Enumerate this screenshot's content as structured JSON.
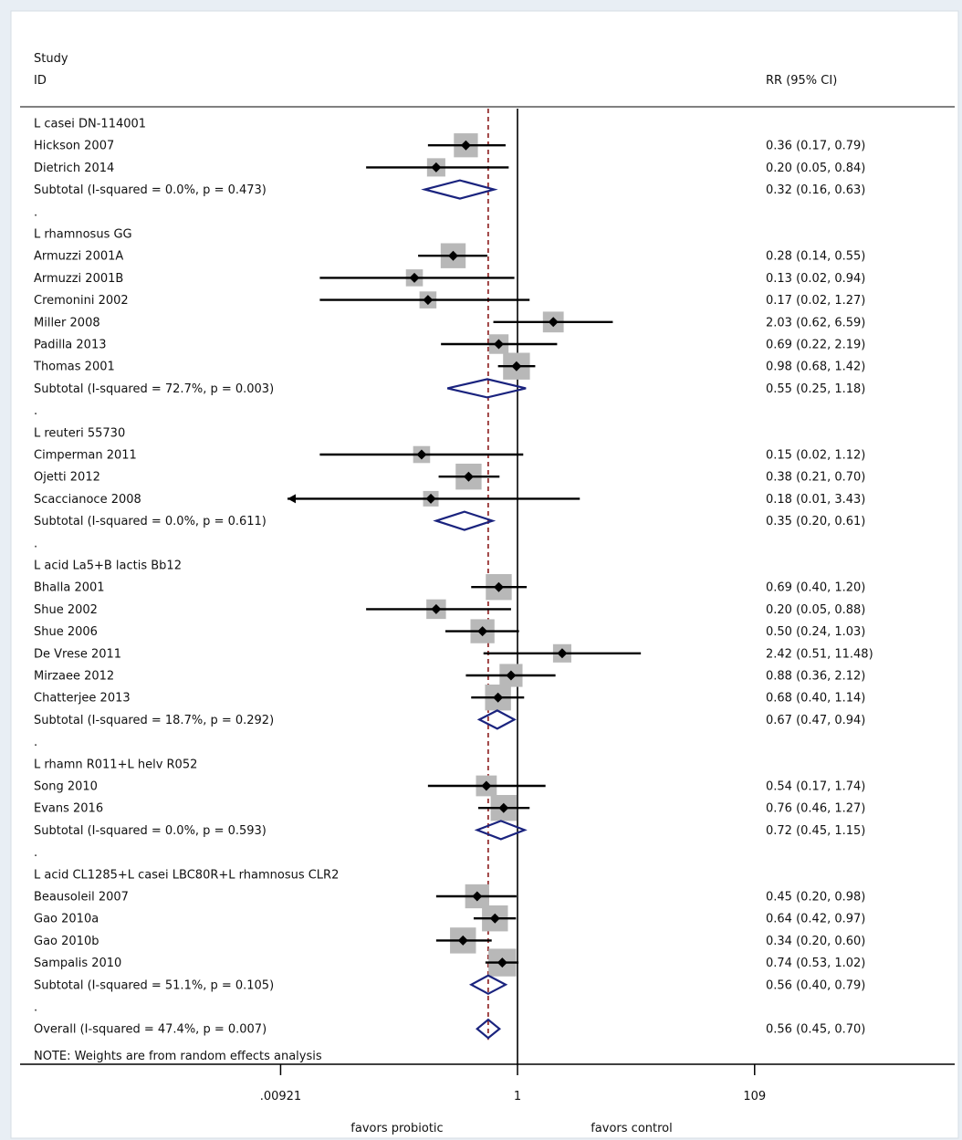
{
  "chart_data": {
    "type": "forest",
    "headers": {
      "study_line1": "Study",
      "study_line2": "ID",
      "effect": "RR (95% CI)"
    },
    "x_axis": {
      "scale": "log",
      "ticks": [
        0.00921,
        1,
        109
      ],
      "tick_labels": [
        ".00921",
        "1",
        "109"
      ],
      "null_line": 1,
      "overall_line": 0.56
    },
    "direction_labels": {
      "left": "favors probiotic",
      "right": "favors control"
    },
    "rows": [
      {
        "type": "group",
        "label": "L casei DN-114001"
      },
      {
        "type": "study",
        "label": "Hickson 2007",
        "rr": 0.36,
        "lo": 0.17,
        "hi": 0.79,
        "text": "0.36 (0.17, 0.79)",
        "w": 1.2
      },
      {
        "type": "study",
        "label": "Dietrich 2014",
        "rr": 0.2,
        "lo": 0.05,
        "hi": 0.84,
        "text": "0.20 (0.05, 0.84)",
        "w": 0.7
      },
      {
        "type": "subtotal",
        "label": "Subtotal  (I-squared = 0.0%, p = 0.473)",
        "rr": 0.32,
        "lo": 0.16,
        "hi": 0.63,
        "text": "0.32 (0.16, 0.63)"
      },
      {
        "type": "sep",
        "label": "."
      },
      {
        "type": "group",
        "label": "L rhamnosus GG"
      },
      {
        "type": "study",
        "label": "Armuzzi 2001A",
        "rr": 0.28,
        "lo": 0.14,
        "hi": 0.55,
        "text": "0.28 (0.14, 0.55)",
        "w": 1.3
      },
      {
        "type": "study",
        "label": "Armuzzi 2001B",
        "rr": 0.13,
        "lo": 0.02,
        "hi": 0.94,
        "text": "0.13 (0.02, 0.94)",
        "w": 0.6
      },
      {
        "type": "study",
        "label": "Cremonini 2002",
        "rr": 0.17,
        "lo": 0.02,
        "hi": 1.27,
        "text": "0.17 (0.02, 1.27)",
        "w": 0.6
      },
      {
        "type": "study",
        "label": "Miller 2008",
        "rr": 2.03,
        "lo": 0.62,
        "hi": 6.59,
        "text": "2.03 (0.62, 6.59)",
        "w": 0.9
      },
      {
        "type": "study",
        "label": "Padilla 2013",
        "rr": 0.69,
        "lo": 0.22,
        "hi": 2.19,
        "text": "0.69 (0.22, 2.19)",
        "w": 0.8
      },
      {
        "type": "study",
        "label": "Thomas 2001",
        "rr": 0.98,
        "lo": 0.68,
        "hi": 1.42,
        "text": "0.98 (0.68, 1.42)",
        "w": 1.5
      },
      {
        "type": "subtotal",
        "label": "Subtotal  (I-squared = 72.7%, p = 0.003)",
        "rr": 0.55,
        "lo": 0.25,
        "hi": 1.18,
        "text": "0.55 (0.25, 1.18)"
      },
      {
        "type": "sep",
        "label": "."
      },
      {
        "type": "group",
        "label": "L reuteri 55730"
      },
      {
        "type": "study",
        "label": "Cimperman 2011",
        "rr": 0.15,
        "lo": 0.02,
        "hi": 1.12,
        "text": "0.15 (0.02, 1.12)",
        "w": 0.6
      },
      {
        "type": "study",
        "label": "Ojetti 2012",
        "rr": 0.38,
        "lo": 0.21,
        "hi": 0.7,
        "text": "0.38 (0.21, 0.70)",
        "w": 1.4
      },
      {
        "type": "study",
        "label": "Scaccianoce 2008",
        "rr": 0.18,
        "lo": 0.01,
        "hi": 3.43,
        "text": "0.18 (0.01, 3.43)",
        "w": 0.5,
        "arrow_left": true
      },
      {
        "type": "subtotal",
        "label": "Subtotal  (I-squared = 0.0%, p = 0.611)",
        "rr": 0.35,
        "lo": 0.2,
        "hi": 0.61,
        "text": "0.35 (0.20, 0.61)"
      },
      {
        "type": "sep",
        "label": "."
      },
      {
        "type": "group",
        "label": "L acid La5+B lactis Bb12"
      },
      {
        "type": "study",
        "label": "Bhalla 2001",
        "rr": 0.69,
        "lo": 0.4,
        "hi": 1.2,
        "text": "0.69 (0.40, 1.20)",
        "w": 1.4
      },
      {
        "type": "study",
        "label": "Shue 2002",
        "rr": 0.2,
        "lo": 0.05,
        "hi": 0.88,
        "text": "0.20 (0.05, 0.88)",
        "w": 0.8
      },
      {
        "type": "study",
        "label": "Shue 2006",
        "rr": 0.5,
        "lo": 0.24,
        "hi": 1.03,
        "text": "0.50 (0.24, 1.03)",
        "w": 1.2
      },
      {
        "type": "study",
        "label": "De Vrese 2011",
        "rr": 2.42,
        "lo": 0.51,
        "hi": 11.48,
        "text": "2.42 (0.51, 11.48)",
        "w": 0.7
      },
      {
        "type": "study",
        "label": "Mirzaee 2012",
        "rr": 0.88,
        "lo": 0.36,
        "hi": 2.12,
        "text": "0.88 (0.36, 2.12)",
        "w": 1.1
      },
      {
        "type": "study",
        "label": "Chatterjee 2013",
        "rr": 0.68,
        "lo": 0.4,
        "hi": 1.14,
        "text": "0.68 (0.40, 1.14)",
        "w": 1.4
      },
      {
        "type": "subtotal",
        "label": "Subtotal  (I-squared = 18.7%, p = 0.292)",
        "rr": 0.67,
        "lo": 0.47,
        "hi": 0.94,
        "text": "0.67 (0.47, 0.94)"
      },
      {
        "type": "sep",
        "label": "."
      },
      {
        "type": "group",
        "label": "L rhamn R011+L helv R052"
      },
      {
        "type": "study",
        "label": "Song 2010",
        "rr": 0.54,
        "lo": 0.17,
        "hi": 1.74,
        "text": "0.54 (0.17, 1.74)",
        "w": 0.9
      },
      {
        "type": "study",
        "label": "Evans 2016",
        "rr": 0.76,
        "lo": 0.46,
        "hi": 1.27,
        "text": "0.76 (0.46, 1.27)",
        "w": 1.4
      },
      {
        "type": "subtotal",
        "label": "Subtotal  (I-squared = 0.0%, p = 0.593)",
        "rr": 0.72,
        "lo": 0.45,
        "hi": 1.15,
        "text": "0.72 (0.45, 1.15)"
      },
      {
        "type": "sep",
        "label": "."
      },
      {
        "type": "group",
        "label": "L acid CL1285+L casei LBC80R+L rhamnosus CLR2"
      },
      {
        "type": "study",
        "label": "Beausoleil 2007",
        "rr": 0.45,
        "lo": 0.2,
        "hi": 0.98,
        "text": "0.45 (0.20, 0.98)",
        "w": 1.2
      },
      {
        "type": "study",
        "label": "Gao 2010a",
        "rr": 0.64,
        "lo": 0.42,
        "hi": 0.97,
        "text": "0.64 (0.42, 0.97)",
        "w": 1.4
      },
      {
        "type": "study",
        "label": "Gao 2010b",
        "rr": 0.34,
        "lo": 0.2,
        "hi": 0.6,
        "text": "0.34 (0.20, 0.60)",
        "w": 1.4
      },
      {
        "type": "study",
        "label": "Sampalis 2010",
        "rr": 0.74,
        "lo": 0.53,
        "hi": 1.02,
        "text": "0.74 (0.53, 1.02)",
        "w": 1.6
      },
      {
        "type": "subtotal",
        "label": "Subtotal  (I-squared = 51.1%, p = 0.105)",
        "rr": 0.56,
        "lo": 0.4,
        "hi": 0.79,
        "text": "0.56 (0.40, 0.79)"
      },
      {
        "type": "sep",
        "label": "."
      },
      {
        "type": "overall",
        "label": "Overall  (I-squared = 47.4%, p = 0.007)",
        "rr": 0.56,
        "lo": 0.45,
        "hi": 0.7,
        "text": "0.56 (0.45, 0.70)"
      }
    ],
    "note": "NOTE: Weights are from random effects analysis",
    "colors": {
      "weight_box": "#b8b8b8",
      "diamond": "#1a237e",
      "overall_line": "#8b1a1a",
      "line": "#000000"
    }
  }
}
